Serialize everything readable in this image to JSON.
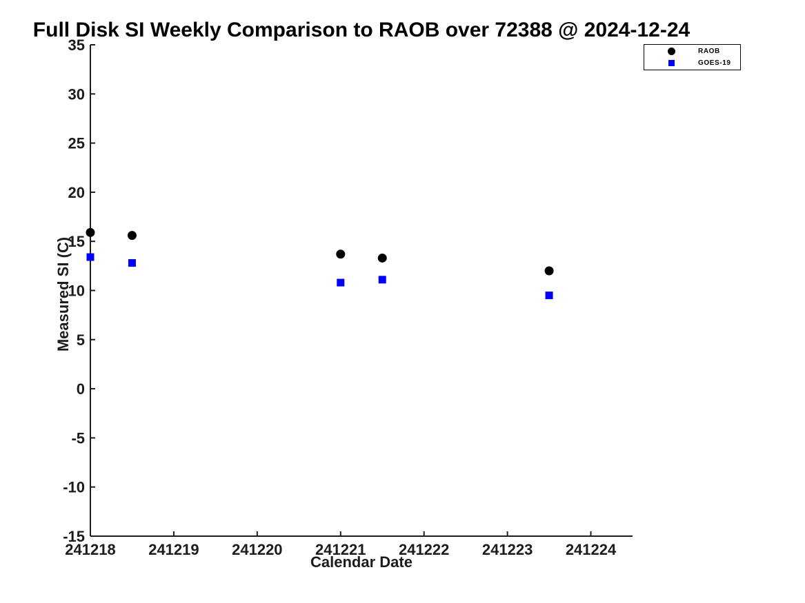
{
  "chart_data": {
    "type": "scatter",
    "title": "Full Disk SI Weekly Comparison to RAOB over 72388 @ 2024-12-24",
    "xlabel": "Calendar Date",
    "ylabel": "Measured SI (C)",
    "xlim": [
      241218,
      241224.5
    ],
    "ylim": [
      -15,
      35
    ],
    "x_ticks": [
      241218,
      241219,
      241220,
      241221,
      241222,
      241223,
      241224
    ],
    "y_ticks": [
      -15,
      -10,
      -5,
      0,
      5,
      10,
      15,
      20,
      25,
      30,
      35
    ],
    "grid": false,
    "legend_position": "top-right-outside",
    "axis_color": "#1c1c1c",
    "background_color": "#ffffff",
    "series": [
      {
        "name": "RAOB",
        "marker": "circle",
        "color": "#000000",
        "x": [
          241218.0,
          241218.5,
          241221.0,
          241221.5,
          241223.5
        ],
        "y": [
          15.9,
          15.6,
          13.7,
          13.3,
          12.0
        ]
      },
      {
        "name": "GOES-19",
        "marker": "square",
        "color": "#0000ff",
        "x": [
          241218.0,
          241218.5,
          241221.0,
          241221.5,
          241223.5
        ],
        "y": [
          13.4,
          12.8,
          10.8,
          11.1,
          9.5
        ]
      }
    ]
  }
}
